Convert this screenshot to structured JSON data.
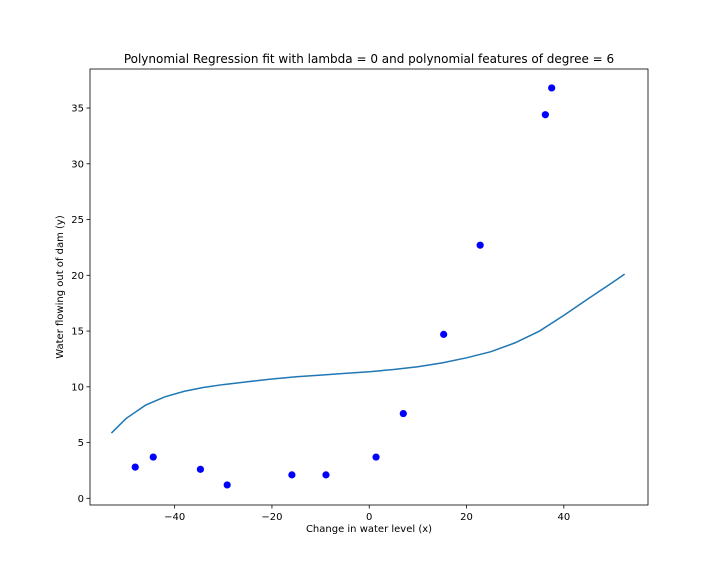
{
  "chart_data": {
    "type": "scatter",
    "title": "Polynomial Regression fit with lambda = 0 and polynomial features of degree = 6",
    "xlabel": "Change in water level (x)",
    "ylabel": "Water flowing out of dam (y)",
    "xlim": [
      -57.4,
      57.3
    ],
    "ylim": [
      -0.6,
      38.5
    ],
    "xticks": [
      -40,
      -20,
      0,
      20,
      40
    ],
    "xtick_labels": [
      "−40",
      "−20",
      "0",
      "20",
      "40"
    ],
    "yticks": [
      0,
      5,
      10,
      15,
      20,
      25,
      30,
      35
    ],
    "ytick_labels": [
      "0",
      "5",
      "10",
      "15",
      "20",
      "25",
      "30",
      "35"
    ],
    "grid": false,
    "series": [
      {
        "kind": "scatter",
        "color": "#0000ff",
        "x": [
          -48.1,
          -44.4,
          -34.7,
          -29.2,
          -15.9,
          -8.9,
          1.4,
          7.0,
          15.3,
          22.8,
          36.2,
          37.5
        ],
        "y": [
          2.8,
          3.7,
          2.6,
          1.2,
          2.1,
          2.1,
          3.7,
          7.6,
          14.7,
          22.7,
          34.4,
          36.8
        ]
      },
      {
        "kind": "line",
        "color": "#1f77b4",
        "x": [
          -53,
          -50,
          -46,
          -42,
          -38,
          -34,
          -30,
          -25,
          -20,
          -15,
          -10,
          -5,
          0,
          5,
          10,
          15,
          20,
          25,
          30,
          35,
          40,
          45,
          50,
          52.5
        ],
        "y": [
          5.85,
          7.15,
          8.35,
          9.1,
          9.6,
          9.95,
          10.2,
          10.45,
          10.7,
          10.9,
          11.05,
          11.2,
          11.35,
          11.55,
          11.8,
          12.15,
          12.6,
          13.15,
          13.95,
          15.0,
          16.4,
          17.9,
          19.35,
          20.1
        ]
      }
    ]
  }
}
